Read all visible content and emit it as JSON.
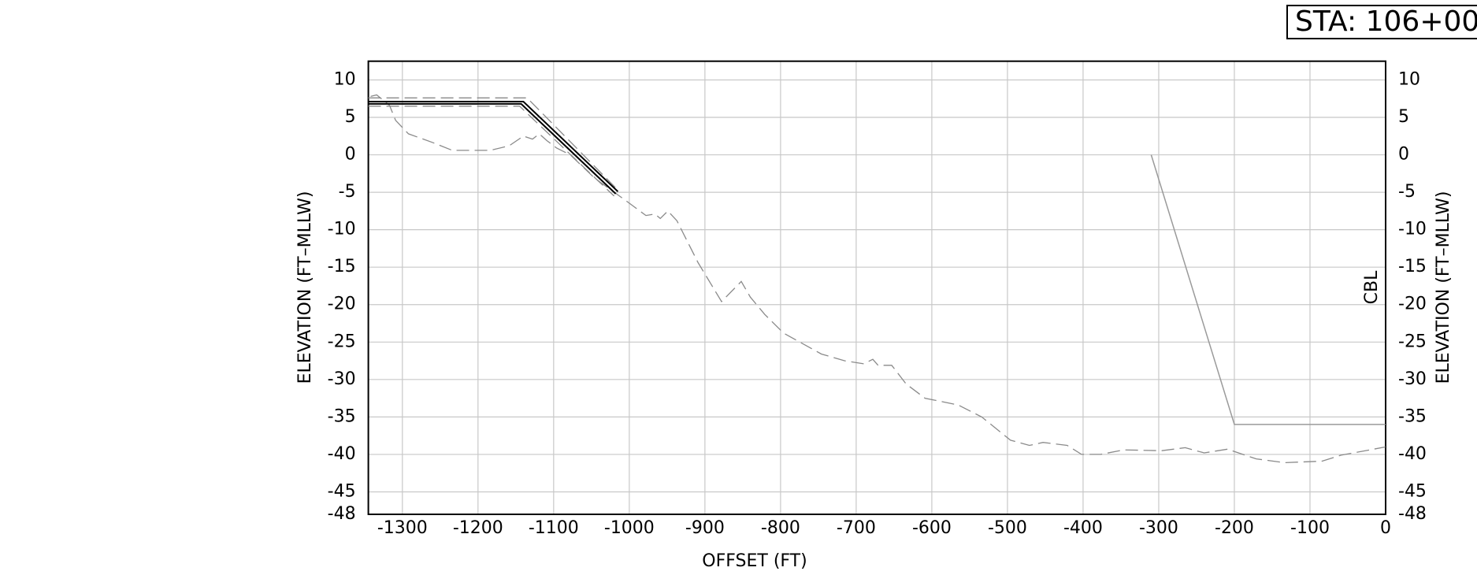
{
  "chart_data": {
    "type": "line",
    "station": "STA:  106+00",
    "x_label": "OFFSET (FT)",
    "y_label": "ELEVATION (FT–MLLW)",
    "xlim": [
      -1345,
      0
    ],
    "ylim": [
      -48,
      12.5
    ],
    "xticks": [
      -1300,
      -1200,
      -1100,
      -1000,
      -900,
      -800,
      -700,
      -600,
      -500,
      -400,
      -300,
      -200,
      -100,
      0
    ],
    "yticks": [
      10,
      5,
      0,
      -5,
      -10,
      -15,
      -20,
      -25,
      -30,
      -35,
      -40,
      -45,
      -48
    ],
    "grid": true,
    "annotations": [
      {
        "text": "CBL"
      }
    ],
    "series": [
      {
        "color": "#8a8a8a",
        "dashed": true,
        "width": 1.3,
        "x": [
          -1342,
          -1334,
          -1317,
          -1309,
          -1292,
          -1259,
          -1234,
          -1184,
          -1159,
          -1140,
          -1128,
          -1119,
          -1109,
          -1096,
          -1078,
          -1046,
          -1002,
          -978,
          -966,
          -959,
          -949,
          -937,
          -909,
          -878,
          -852,
          -840,
          -821,
          -796,
          -746,
          -715,
          -690,
          -678,
          -671,
          -653,
          -634,
          -609,
          -565,
          -534,
          -496,
          -471,
          -453,
          -421,
          -402,
          -377,
          -346,
          -296,
          -265,
          -240,
          -209,
          -171,
          -134,
          -84,
          -59,
          -21,
          0
        ],
        "values": [
          7.8,
          8,
          6.6,
          4.6,
          2.8,
          1.6,
          0.6,
          0.6,
          1.2,
          2.5,
          2.1,
          2.8,
          1.9,
          0.9,
          0,
          -3.1,
          -6.3,
          -8.1,
          -7.9,
          -8.5,
          -7.5,
          -8.8,
          -14.4,
          -19.6,
          -16.9,
          -19,
          -21.3,
          -23.8,
          -26.6,
          -27.5,
          -27.9,
          -27.3,
          -28.1,
          -28.1,
          -30.6,
          -32.5,
          -33.4,
          -35,
          -38.1,
          -38.8,
          -38.4,
          -38.8,
          -40,
          -40,
          -39.4,
          -39.5,
          -39.1,
          -39.8,
          -39.3,
          -40.6,
          -41.1,
          -40.9,
          -40.1,
          -39.4,
          -39
        ]
      },
      {
        "color": "#888888",
        "dashed": true,
        "width": 1.3,
        "x": [
          -1345,
          -1135,
          -1017
        ],
        "values": [
          7.6,
          7.6,
          -4.5
        ]
      },
      {
        "color": "#888888",
        "dashed": true,
        "width": 1.3,
        "x": [
          -1345,
          -1145,
          -1020
        ],
        "values": [
          6.5,
          6.5,
          -5.5
        ]
      },
      {
        "color": "#000000",
        "dashed": false,
        "width": 2,
        "x": [
          -1345,
          -1140,
          -1015
        ],
        "values": [
          7.1,
          7.1,
          -4.9
        ]
      },
      {
        "color": "#000000",
        "dashed": false,
        "width": 2,
        "x": [
          -1345,
          -1143,
          -1018
        ],
        "values": [
          6.8,
          6.8,
          -5.2
        ]
      },
      {
        "color": "#9a9a9a",
        "dashed": false,
        "width": 1.5,
        "x": [
          -310,
          -200,
          0
        ],
        "values": [
          0,
          -36,
          -36
        ]
      }
    ]
  }
}
